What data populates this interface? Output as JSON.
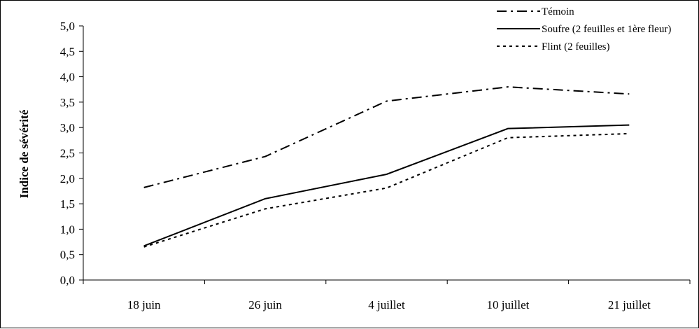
{
  "chart_data": {
    "type": "line",
    "title": "",
    "xlabel": "",
    "ylabel": "Indice de sévérité",
    "categories": [
      "18 juin",
      "26 juin",
      "4 juillet",
      "10 juillet",
      "21 juillet"
    ],
    "ylim": [
      0,
      5
    ],
    "yticks": [
      "0,0",
      "0,5",
      "1,0",
      "1,5",
      "2,0",
      "2,5",
      "3,0",
      "3,5",
      "4,0",
      "4,5",
      "5,0"
    ],
    "grid": false,
    "legend_position": "top-right",
    "series": [
      {
        "name": "Témoin",
        "style": "dash-dot",
        "color": "#000000",
        "values": [
          1.82,
          2.43,
          3.52,
          3.8,
          3.66
        ]
      },
      {
        "name": "Soufre (2 feuilles et 1ère fleur)",
        "style": "solid",
        "color": "#000000",
        "values": [
          0.67,
          1.6,
          2.08,
          2.98,
          3.05
        ]
      },
      {
        "name": "Flint (2 feuilles)",
        "style": "dotted",
        "color": "#000000",
        "values": [
          0.65,
          1.4,
          1.81,
          2.8,
          2.88
        ]
      }
    ]
  }
}
